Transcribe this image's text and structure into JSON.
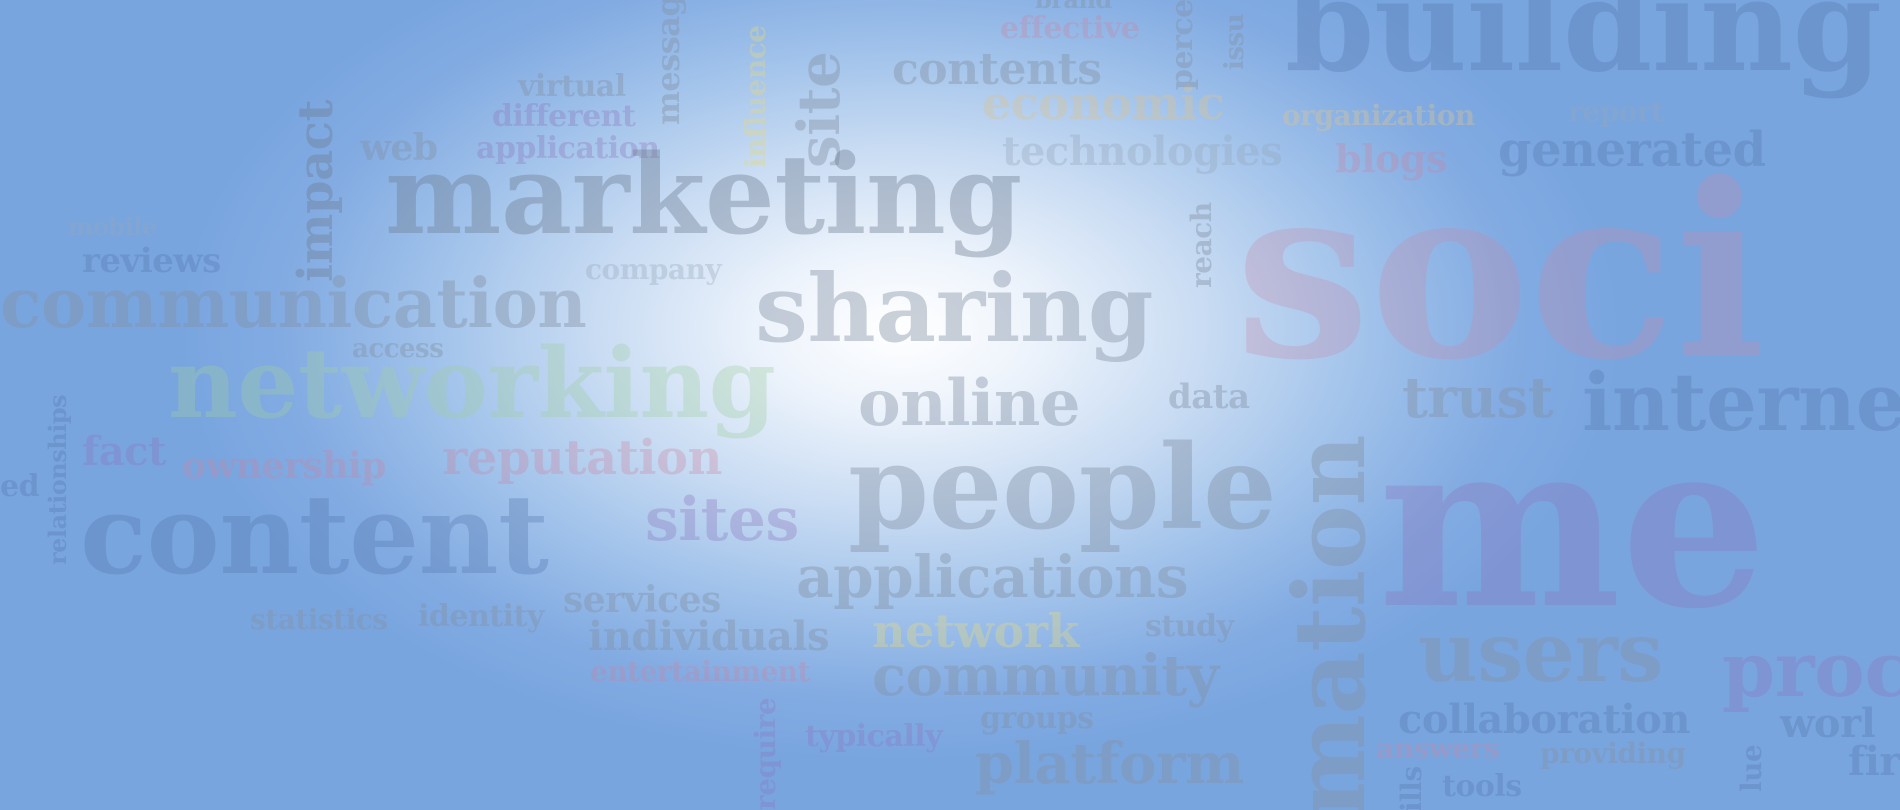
{
  "words": {
    "brand": "brand",
    "effective": "effective",
    "contents": "contents",
    "economic": "economic",
    "organization": "organization",
    "report": "report",
    "building": "building",
    "virtual": "virtual",
    "different": "different",
    "web": "web",
    "application": "application",
    "message": "message",
    "influence": "influence",
    "site": "site",
    "perce": "perce",
    "issu": "issu",
    "technologies": "technologies",
    "blogs": "blogs",
    "generated": "generated",
    "impact": "impact",
    "marketing": "marketing",
    "mobile": "mobile",
    "reviews": "reviews",
    "company": "company",
    "reach": "reach",
    "communication": "communication",
    "sharing": "sharing",
    "soci": "soci",
    "access": "access",
    "networking": "networking",
    "online": "online",
    "data": "data",
    "trust": "trust",
    "interne": "interne",
    "relationships": "relationships",
    "fact": "fact",
    "ownership": "ownership",
    "reputation": "reputation",
    "ed": "ed",
    "content": "content",
    "sites": "sites",
    "people": "people",
    "mation": "mation",
    "me": "me",
    "applications": "applications",
    "statistics": "statistics",
    "identity": "identity",
    "services": "services",
    "individuals": "individuals",
    "network": "network",
    "study": "study",
    "users": "users",
    "entertainment": "entertainment",
    "community": "community",
    "proc": "proc",
    "collaboration": "collaboration",
    "worl": "worl",
    "require": "require",
    "typically": "typically",
    "groups": "groups",
    "answers": "answers",
    "providing": "providing",
    "lue": "lue",
    "fir": "fir",
    "platform": "platform",
    "ills": "ills",
    "tools": "tools"
  }
}
